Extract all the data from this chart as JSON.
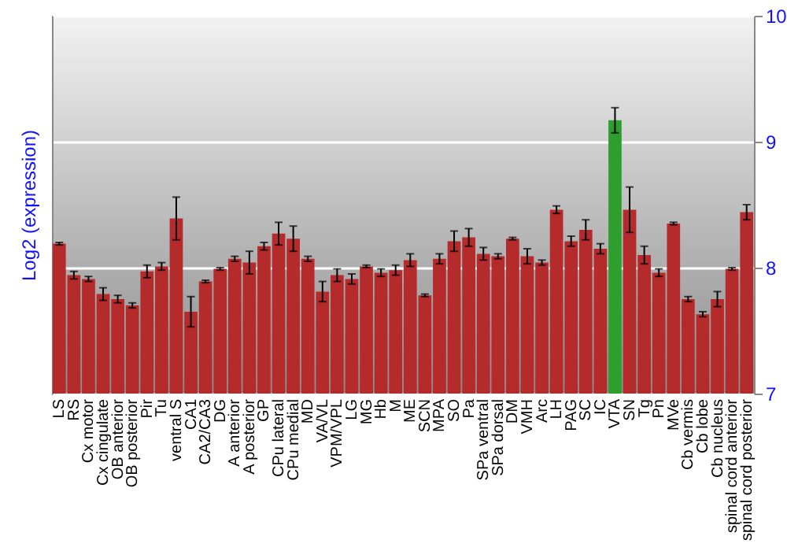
{
  "chart_data": {
    "type": "bar",
    "ylabel": "Log2 (expression)",
    "categories": [
      "LS",
      "RS",
      "Cx motor",
      "Cx cingulate",
      "OB anterior",
      "OB posterior",
      "Pir",
      "Tu",
      "ventral S",
      "CA1",
      "CA2/CA3",
      "DG",
      "A anterior",
      "A posterior",
      "GP",
      "CPu lateral",
      "CPu medial",
      "MD",
      "VA/VL",
      "VPM/VPL",
      "LG",
      "MG",
      "Hb",
      "M",
      "ME",
      "SCN",
      "MPA",
      "SO",
      "Pa",
      "SPa ventral",
      "SPa dorsal",
      "DM",
      "VMH",
      "Arc",
      "LH",
      "PAG",
      "SC",
      "IC",
      "VTA",
      "SN",
      "Tg",
      "Pn",
      "MVe",
      "Cb vermis",
      "Cb lobe",
      "Cb nucleus",
      "spinal cord anterior",
      "spinal cord posterior"
    ],
    "values": [
      8.19,
      7.94,
      7.91,
      7.79,
      7.75,
      7.7,
      7.97,
      8.01,
      8.39,
      7.65,
      7.89,
      7.99,
      8.07,
      8.04,
      8.17,
      8.27,
      8.23,
      8.07,
      7.81,
      7.94,
      7.91,
      8.01,
      7.96,
      7.98,
      8.06,
      7.78,
      8.07,
      8.21,
      8.24,
      8.11,
      8.09,
      8.23,
      8.09,
      8.04,
      8.46,
      8.21,
      8.3,
      8.15,
      9.17,
      8.46,
      8.1,
      7.96,
      8.35,
      7.75,
      7.63,
      7.75,
      7.99,
      8.44
    ],
    "errors": [
      0.01,
      0.03,
      0.02,
      0.05,
      0.03,
      0.02,
      0.05,
      0.03,
      0.17,
      0.12,
      0.01,
      0.01,
      0.02,
      0.09,
      0.03,
      0.09,
      0.1,
      0.02,
      0.08,
      0.05,
      0.04,
      0.01,
      0.03,
      0.04,
      0.05,
      0.01,
      0.04,
      0.08,
      0.07,
      0.05,
      0.02,
      0.01,
      0.06,
      0.02,
      0.03,
      0.04,
      0.08,
      0.04,
      0.1,
      0.18,
      0.07,
      0.03,
      0.01,
      0.02,
      0.02,
      0.06,
      0.01,
      0.06
    ],
    "colors": [
      "#b52b2b",
      "#b52b2b",
      "#b52b2b",
      "#b52b2b",
      "#b52b2b",
      "#b52b2b",
      "#b52b2b",
      "#b52b2b",
      "#b52b2b",
      "#b52b2b",
      "#b52b2b",
      "#b52b2b",
      "#b52b2b",
      "#b52b2b",
      "#b52b2b",
      "#b52b2b",
      "#b52b2b",
      "#b52b2b",
      "#b52b2b",
      "#b52b2b",
      "#b52b2b",
      "#b52b2b",
      "#b52b2b",
      "#b52b2b",
      "#b52b2b",
      "#b52b2b",
      "#b52b2b",
      "#b52b2b",
      "#b52b2b",
      "#b52b2b",
      "#b52b2b",
      "#b52b2b",
      "#b52b2b",
      "#b52b2b",
      "#b52b2b",
      "#b52b2b",
      "#b52b2b",
      "#b52b2b",
      "#2e9e2e",
      "#b52b2b",
      "#b52b2b",
      "#b52b2b",
      "#b52b2b",
      "#b52b2b",
      "#b52b2b",
      "#b52b2b",
      "#b52b2b",
      "#b52b2b"
    ],
    "ylim": [
      7,
      10
    ],
    "yticks": [
      7,
      8,
      9,
      10
    ],
    "grid": true
  }
}
